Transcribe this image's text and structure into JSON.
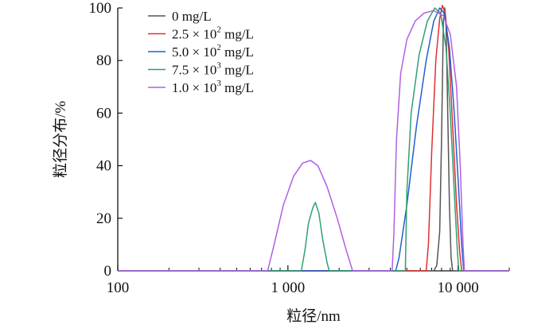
{
  "chart_data": {
    "type": "line",
    "xlabel": "粒径/nm",
    "ylabel": "粒径分布/%",
    "xscale": "log",
    "xlim": [
      100,
      20000
    ],
    "ylim": [
      0,
      100
    ],
    "xticks": [
      100,
      1000,
      10000
    ],
    "xtick_labels": [
      "100",
      "1 000",
      "10 000"
    ],
    "yticks": [
      0,
      20,
      40,
      60,
      80,
      100
    ],
    "ytick_labels": [
      "0",
      "20",
      "40",
      "60",
      "80",
      "100"
    ],
    "grid": false,
    "legend_position": "top-left",
    "series": [
      {
        "name": "0 mg/L",
        "legend_base": "0 mg/L",
        "legend_sup": "",
        "color": "#555555",
        "points": [
          [
            100,
            0
          ],
          [
            7200,
            0
          ],
          [
            7500,
            2
          ],
          [
            7800,
            15
          ],
          [
            8000,
            50
          ],
          [
            8200,
            95
          ],
          [
            8350,
            100
          ],
          [
            8500,
            95
          ],
          [
            8700,
            60
          ],
          [
            8900,
            25
          ],
          [
            9100,
            5
          ],
          [
            9300,
            0
          ],
          [
            20000,
            0
          ]
        ]
      },
      {
        "name": "2.5 × 10² mg/L",
        "legend_base": "2.5 × 10",
        "legend_sup": "2",
        "legend_unit": " mg/L",
        "color": "#e03030",
        "points": [
          [
            100,
            0
          ],
          [
            6500,
            0
          ],
          [
            6700,
            10
          ],
          [
            7000,
            45
          ],
          [
            7400,
            80
          ],
          [
            7800,
            96
          ],
          [
            8100,
            101
          ],
          [
            8400,
            98
          ],
          [
            8800,
            85
          ],
          [
            9300,
            55
          ],
          [
            9800,
            25
          ],
          [
            10200,
            8
          ],
          [
            10500,
            0
          ],
          [
            20000,
            0
          ]
        ]
      },
      {
        "name": "5.0 × 10² mg/L",
        "legend_base": "5.0 × 10",
        "legend_sup": "2",
        "legend_unit": " mg/L",
        "color": "#2060d0",
        "points": [
          [
            100,
            0
          ],
          [
            4300,
            0
          ],
          [
            4500,
            5
          ],
          [
            5000,
            25
          ],
          [
            5700,
            55
          ],
          [
            6500,
            80
          ],
          [
            7200,
            95
          ],
          [
            7800,
            100
          ],
          [
            8300,
            98
          ],
          [
            8900,
            85
          ],
          [
            9500,
            60
          ],
          [
            10100,
            30
          ],
          [
            10500,
            10
          ],
          [
            10800,
            0
          ],
          [
            20000,
            0
          ]
        ]
      },
      {
        "name": "7.5 × 10³ mg/L",
        "legend_base": "7.5 × 10",
        "legend_sup": "3",
        "legend_unit": " mg/L",
        "color": "#30a070",
        "points": [
          [
            100,
            0
          ],
          [
            1200,
            0
          ],
          [
            1260,
            8
          ],
          [
            1320,
            18
          ],
          [
            1400,
            24
          ],
          [
            1450,
            26
          ],
          [
            1520,
            22
          ],
          [
            1600,
            12
          ],
          [
            1700,
            3
          ],
          [
            1750,
            0
          ],
          [
            4900,
            0
          ],
          [
            5000,
            30
          ],
          [
            5300,
            60
          ],
          [
            5900,
            82
          ],
          [
            6600,
            95
          ],
          [
            7300,
            100
          ],
          [
            7900,
            98
          ],
          [
            8500,
            85
          ],
          [
            9000,
            60
          ],
          [
            9500,
            30
          ],
          [
            9900,
            8
          ],
          [
            10100,
            0
          ],
          [
            20000,
            0
          ]
        ]
      },
      {
        "name": "1.0 × 10³ mg/L",
        "legend_base": "1.0 × 10",
        "legend_sup": "3",
        "legend_unit": " mg/L",
        "color": "#b060e0",
        "points": [
          [
            100,
            0
          ],
          [
            760,
            0
          ],
          [
            830,
            10
          ],
          [
            940,
            25
          ],
          [
            1080,
            36
          ],
          [
            1220,
            41
          ],
          [
            1360,
            42
          ],
          [
            1500,
            40
          ],
          [
            1700,
            32
          ],
          [
            1950,
            20
          ],
          [
            2200,
            8
          ],
          [
            2400,
            0
          ],
          [
            4100,
            0
          ],
          [
            4200,
            15
          ],
          [
            4350,
            50
          ],
          [
            4600,
            75
          ],
          [
            5000,
            88
          ],
          [
            5600,
            95
          ],
          [
            6300,
            98
          ],
          [
            7200,
            99
          ],
          [
            8200,
            97
          ],
          [
            9000,
            90
          ],
          [
            9800,
            70
          ],
          [
            10300,
            40
          ],
          [
            10700,
            10
          ],
          [
            10900,
            0
          ],
          [
            20000,
            0
          ]
        ]
      }
    ]
  }
}
